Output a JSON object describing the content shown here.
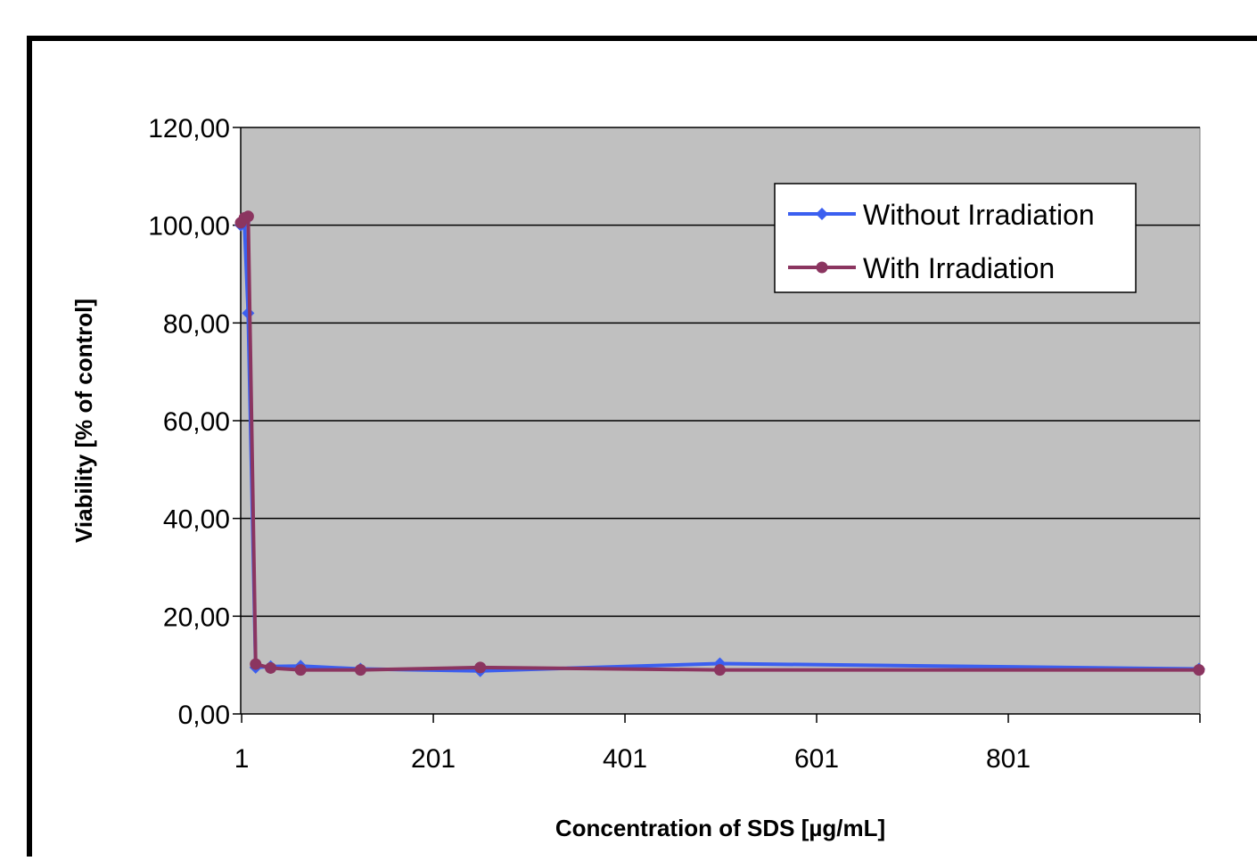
{
  "chart_data": {
    "type": "line",
    "title": "",
    "xlabel": "Concentration of SDS [µg/mL]",
    "ylabel": "Viability [% of control]",
    "xlim": [
      1,
      1001
    ],
    "ylim": [
      0,
      120
    ],
    "x_ticks": [
      1,
      201,
      401,
      601,
      801
    ],
    "x_tick_labels": [
      "1",
      "201",
      "401",
      "601",
      "801"
    ],
    "y_ticks": [
      0,
      20,
      40,
      60,
      80,
      100,
      120
    ],
    "y_tick_labels": [
      "0,00",
      "20,00",
      "40,00",
      "60,00",
      "80,00",
      "100,00",
      "120,00"
    ],
    "grid": "horizontal",
    "legend_position": "top-right",
    "plot_background": "#c0c0c0",
    "series": [
      {
        "name": "Without Irradiation",
        "color": "#3b5ff0",
        "marker": "diamond",
        "x": [
          0,
          3.9,
          7.8,
          15.6,
          31.25,
          62.5,
          125,
          250,
          500,
          1000
        ],
        "y": [
          100.0,
          100.5,
          82.0,
          9.5,
          9.7,
          9.8,
          9.2,
          8.8,
          10.3,
          9.2
        ]
      },
      {
        "name": "With Irradiation",
        "color": "#8b3560",
        "marker": "circle",
        "x": [
          0,
          3.9,
          7.8,
          15.6,
          31.25,
          62.5,
          125,
          250,
          500,
          1000
        ],
        "y": [
          100.5,
          101.5,
          101.8,
          10.2,
          9.4,
          9.0,
          9.0,
          9.5,
          9.0,
          9.0
        ]
      }
    ]
  }
}
